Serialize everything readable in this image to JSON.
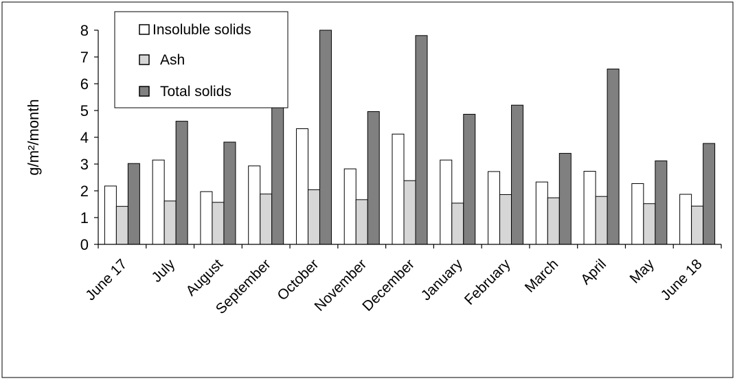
{
  "chart_data": {
    "type": "bar",
    "title": "",
    "xlabel": "",
    "ylabel": "g/m²/month",
    "ylim": [
      0,
      8
    ],
    "yticks": [
      "0",
      "1",
      "2",
      "3",
      "4",
      "5",
      "6",
      "7",
      "8"
    ],
    "categories": [
      "June 17",
      "July",
      "August",
      "September",
      "October",
      "November",
      "December",
      "January",
      "February",
      "March",
      "April",
      "May",
      "June 18"
    ],
    "grid": false,
    "legend_position": "top-left",
    "series": [
      {
        "name": "Insoluble solids",
        "color": "#ffffff",
        "values": [
          2.18,
          3.15,
          1.97,
          2.93,
          4.32,
          2.82,
          4.12,
          3.15,
          2.72,
          2.33,
          2.73,
          2.27,
          1.87
        ]
      },
      {
        "name": "Ash",
        "color": "#d6d6d6",
        "values": [
          1.42,
          1.62,
          1.57,
          1.88,
          2.04,
          1.67,
          2.38,
          1.54,
          1.86,
          1.74,
          1.79,
          1.52,
          1.43
        ]
      },
      {
        "name": "Total solids",
        "color": "#808080",
        "values": [
          3.02,
          4.6,
          3.82,
          5.12,
          8.0,
          4.96,
          7.8,
          4.86,
          5.2,
          3.4,
          6.55,
          3.12,
          3.77
        ]
      }
    ]
  }
}
